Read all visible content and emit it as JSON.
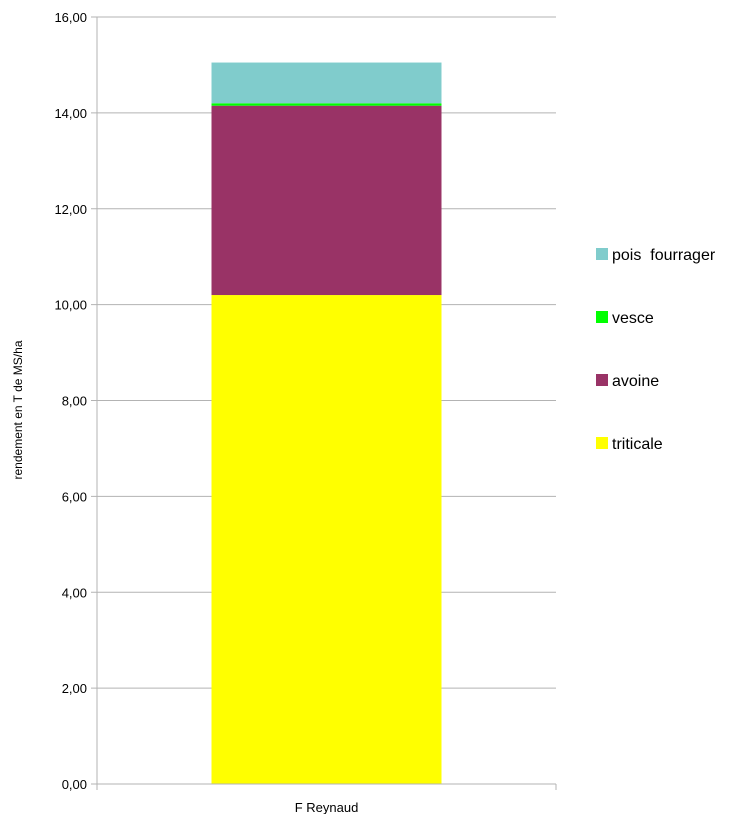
{
  "chart_data": {
    "type": "bar",
    "stacked": true,
    "categories": [
      "F Reynaud"
    ],
    "series": [
      {
        "name": "triticale",
        "values": [
          10.2
        ],
        "color": "#ffff00"
      },
      {
        "name": "avoine",
        "values": [
          3.95
        ],
        "color": "#993366"
      },
      {
        "name": "vesce",
        "values": [
          0.05
        ],
        "color": "#00ff00"
      },
      {
        "name": "pois  fourrager",
        "values": [
          0.85
        ],
        "color": "#80cccc"
      }
    ],
    "title": "",
    "xlabel": "",
    "ylabel": "rendement en T de MS/ha",
    "ylim": [
      0,
      16
    ],
    "yticks": [
      "0,00",
      "2,00",
      "4,00",
      "6,00",
      "8,00",
      "10,00",
      "12,00",
      "14,00",
      "16,00"
    ],
    "grid": true,
    "legend_position": "right"
  }
}
